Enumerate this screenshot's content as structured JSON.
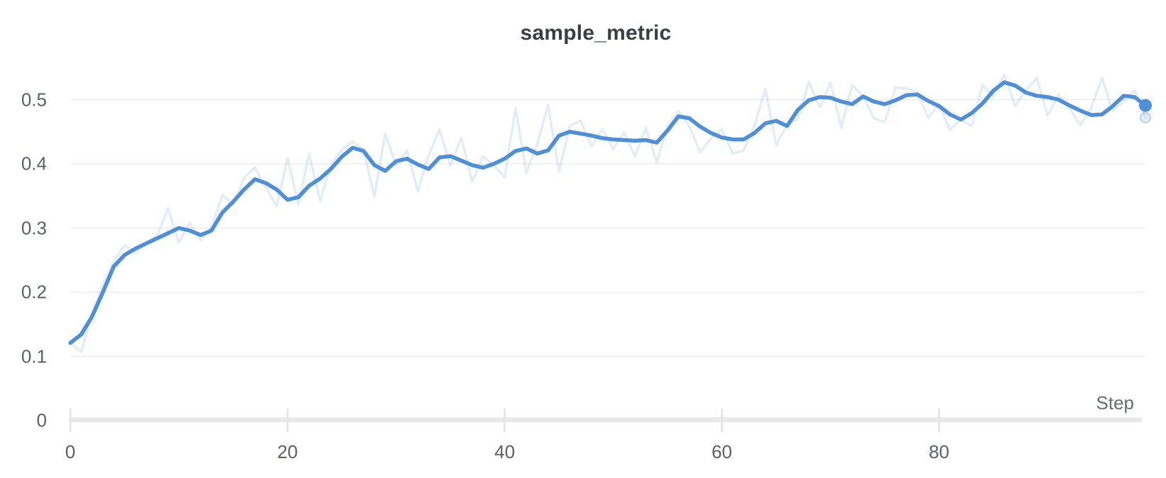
{
  "chart": {
    "title": "sample_metric"
  },
  "chart_data": {
    "type": "line",
    "title": "sample_metric",
    "xlabel": "Step",
    "ylabel": "",
    "x_range": [
      0,
      99
    ],
    "y_range": [
      0,
      0.55
    ],
    "x_tick_values": [
      0,
      20,
      40,
      60,
      80
    ],
    "x_tick_labels": [
      "0",
      "20",
      "40",
      "60",
      "80"
    ],
    "y_tick_values": [
      0.5,
      0.4,
      0.3,
      0.2,
      0.1,
      0
    ],
    "y_tick_labels": [
      "0.5",
      "0.4",
      "0.3",
      "0.2",
      "0.1",
      "0"
    ],
    "grid": "horizontal-only",
    "legend": "none",
    "x": [
      0,
      1,
      2,
      3,
      4,
      5,
      6,
      7,
      8,
      9,
      10,
      11,
      12,
      13,
      14,
      15,
      16,
      17,
      18,
      19,
      20,
      21,
      22,
      23,
      24,
      25,
      26,
      27,
      28,
      29,
      30,
      31,
      32,
      33,
      34,
      35,
      36,
      37,
      38,
      39,
      40,
      41,
      42,
      43,
      44,
      45,
      46,
      47,
      48,
      49,
      50,
      51,
      52,
      53,
      54,
      55,
      56,
      57,
      58,
      59,
      60,
      61,
      62,
      63,
      64,
      65,
      66,
      67,
      68,
      69,
      70,
      71,
      72,
      73,
      74,
      75,
      76,
      77,
      78,
      79,
      80,
      81,
      82,
      83,
      84,
      85,
      86,
      87,
      88,
      89,
      90,
      91,
      92,
      93,
      94,
      95,
      96,
      97,
      98,
      99
    ],
    "series": [
      {
        "name": "raw",
        "role": "original-unsmoothed",
        "values": [
          0.121,
          0.107,
          0.166,
          0.212,
          0.248,
          0.273,
          0.262,
          0.278,
          0.288,
          0.331,
          0.277,
          0.308,
          0.281,
          0.3,
          0.352,
          0.336,
          0.378,
          0.394,
          0.363,
          0.334,
          0.409,
          0.337,
          0.416,
          0.342,
          0.398,
          0.422,
          0.435,
          0.422,
          0.349,
          0.447,
          0.398,
          0.421,
          0.357,
          0.413,
          0.454,
          0.397,
          0.441,
          0.372,
          0.411,
          0.398,
          0.379,
          0.487,
          0.386,
          0.431,
          0.492,
          0.388,
          0.459,
          0.467,
          0.427,
          0.454,
          0.423,
          0.449,
          0.412,
          0.456,
          0.402,
          0.459,
          0.482,
          0.459,
          0.418,
          0.44,
          0.454,
          0.416,
          0.421,
          0.459,
          0.517,
          0.429,
          0.461,
          0.47,
          0.528,
          0.488,
          0.526,
          0.456,
          0.523,
          0.505,
          0.471,
          0.465,
          0.519,
          0.517,
          0.512,
          0.471,
          0.493,
          0.453,
          0.469,
          0.459,
          0.523,
          0.505,
          0.539,
          0.49,
          0.515,
          0.534,
          0.475,
          0.508,
          0.487,
          0.46,
          0.487,
          0.534,
          0.482,
          0.498,
          0.515,
          0.472
        ]
      },
      {
        "name": "smoothed",
        "role": "smoothed-main",
        "values": [
          0.121,
          0.134,
          0.162,
          0.2,
          0.24,
          0.258,
          0.268,
          0.276,
          0.284,
          0.292,
          0.3,
          0.296,
          0.289,
          0.296,
          0.324,
          0.341,
          0.36,
          0.376,
          0.37,
          0.36,
          0.344,
          0.348,
          0.366,
          0.377,
          0.392,
          0.411,
          0.425,
          0.42,
          0.398,
          0.389,
          0.404,
          0.408,
          0.399,
          0.392,
          0.41,
          0.412,
          0.405,
          0.398,
          0.394,
          0.4,
          0.408,
          0.42,
          0.424,
          0.416,
          0.421,
          0.444,
          0.45,
          0.447,
          0.444,
          0.44,
          0.438,
          0.437,
          0.436,
          0.437,
          0.433,
          0.452,
          0.474,
          0.471,
          0.458,
          0.448,
          0.441,
          0.438,
          0.438,
          0.448,
          0.463,
          0.467,
          0.459,
          0.484,
          0.499,
          0.504,
          0.503,
          0.497,
          0.493,
          0.505,
          0.497,
          0.493,
          0.499,
          0.507,
          0.508,
          0.498,
          0.49,
          0.477,
          0.469,
          0.479,
          0.494,
          0.514,
          0.527,
          0.522,
          0.511,
          0.506,
          0.504,
          0.5,
          0.491,
          0.483,
          0.476,
          0.477,
          0.49,
          0.506,
          0.504,
          0.491
        ]
      }
    ],
    "colors": {
      "smoothed_line": "#4e8fd7",
      "raw_line_rgba": "rgba(77,143,214,0.16)",
      "endpoint_dot": "#4e8fd7",
      "raw_dot_fill": "rgba(77,143,214,0.14)",
      "raw_dot_stroke": "rgba(77,143,214,0.30)",
      "gridline": "#ececee",
      "axis_band": "#e8e8ea",
      "tick_mark": "#e6e6e8",
      "title_text": "#3a3e46",
      "tick_text": "#5c5f67",
      "step_text": "#686c75"
    }
  }
}
